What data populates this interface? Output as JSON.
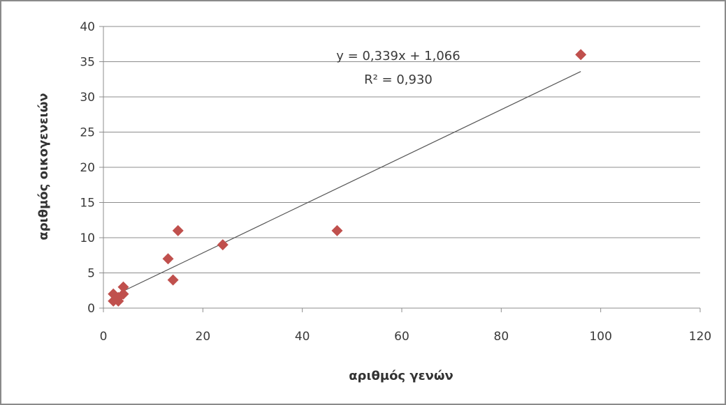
{
  "chart_data": {
    "type": "scatter",
    "xlabel": "αριθμός γενών",
    "ylabel": "αριθμός οικογενειών",
    "xlim": [
      0,
      120
    ],
    "ylim": [
      0,
      40
    ],
    "x_ticks": [
      "0",
      "20",
      "40",
      "60",
      "80",
      "100",
      "120"
    ],
    "y_ticks": [
      "0",
      "5",
      "10",
      "15",
      "20",
      "25",
      "30",
      "35",
      "40"
    ],
    "x_tick_values": [
      0,
      20,
      40,
      60,
      80,
      100,
      120
    ],
    "y_tick_values": [
      0,
      5,
      10,
      15,
      20,
      25,
      30,
      35,
      40
    ],
    "grid": "horizontal",
    "marker_color": "#c0504d",
    "series": [
      {
        "marker": "diamond",
        "points": [
          {
            "x": 2,
            "y": 2
          },
          {
            "x": 2,
            "y": 1
          },
          {
            "x": 3,
            "y": 1
          },
          {
            "x": 3,
            "y": 1.5
          },
          {
            "x": 4,
            "y": 2
          },
          {
            "x": 4,
            "y": 3
          },
          {
            "x": 13,
            "y": 7
          },
          {
            "x": 14,
            "y": 4
          },
          {
            "x": 15,
            "y": 11
          },
          {
            "x": 24,
            "y": 9
          },
          {
            "x": 47,
            "y": 11
          },
          {
            "x": 96,
            "y": 36
          }
        ]
      }
    ],
    "trendline": {
      "type": "linear",
      "slope": 0.339,
      "intercept": 1.066,
      "x_range": [
        2,
        96
      ],
      "equation_label": "y = 0,339x + 1,066",
      "r2_label": "R² = 0,930"
    }
  }
}
